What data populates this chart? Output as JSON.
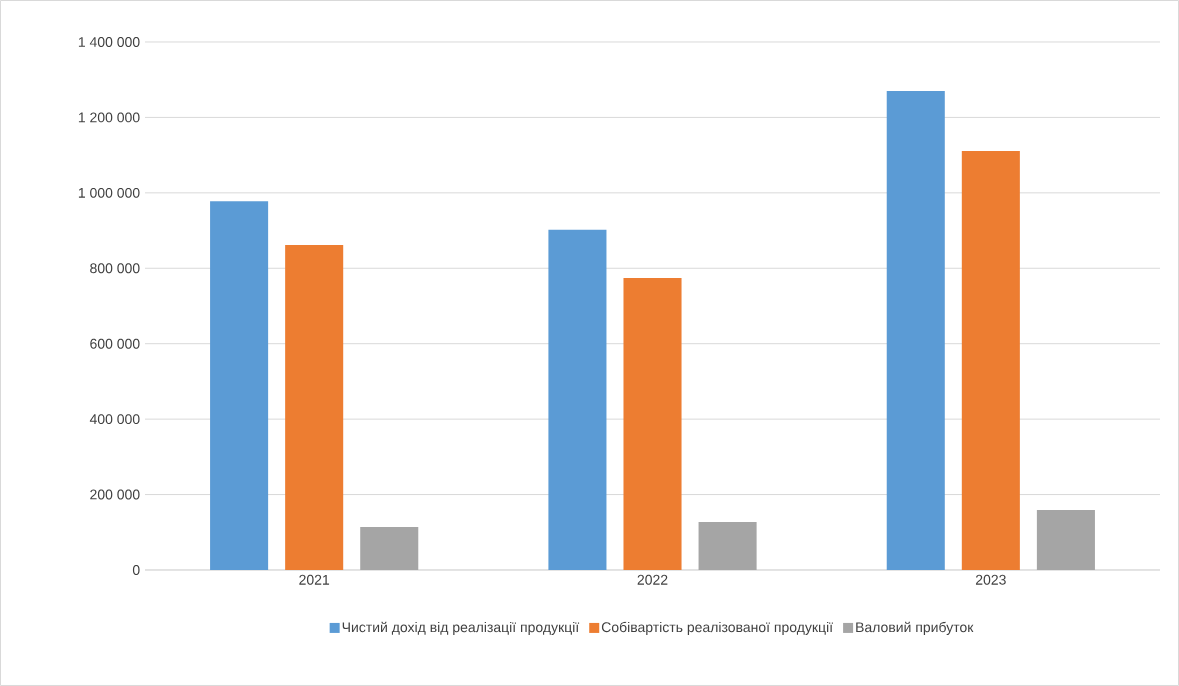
{
  "chart_data": {
    "type": "bar",
    "categories": [
      "2021",
      "2022",
      "2023"
    ],
    "series": [
      {
        "name": "Чистий дохід від реалізації продукції",
        "color": "#5b9bd5",
        "values": [
          978000,
          902000,
          1270000
        ]
      },
      {
        "name": "Собівартість реалізованої продукції",
        "color": "#ed7d31",
        "values": [
          862000,
          774000,
          1111000
        ]
      },
      {
        "name": "Валовий прибуток",
        "color": "#a5a5a5",
        "values": [
          114000,
          127000,
          159000
        ]
      }
    ],
    "ylim": [
      0,
      1400000
    ],
    "yticks": [
      0,
      {
        "value": 200000,
        "label": "200 000"
      },
      {
        "value": 400000,
        "label": "400 000"
      },
      {
        "value": 600000,
        "label": "600 000"
      },
      {
        "value": 800000,
        "label": "800 000"
      },
      {
        "value": 1000000,
        "label": "1 000 000"
      },
      {
        "value": 1200000,
        "label": "1 200 000"
      },
      {
        "value": 1400000,
        "label": "1 400 000"
      }
    ],
    "grid": "y",
    "legend": "bottom"
  }
}
